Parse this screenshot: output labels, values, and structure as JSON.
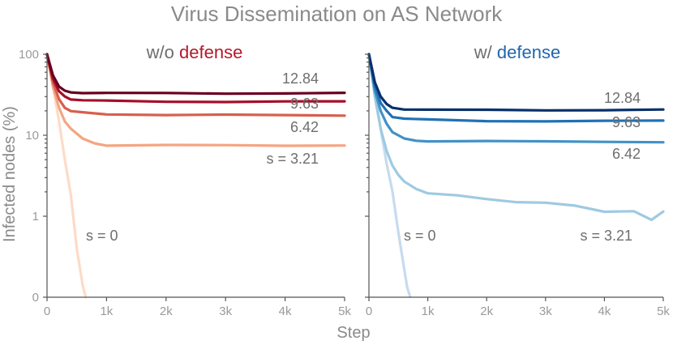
{
  "title": "Virus Dissemination on AS Network",
  "xlabel": "Step",
  "ylabel": "Infected nodes (%)",
  "chart_data": [
    {
      "type": "line",
      "subtitle_prefix": "w/o",
      "subtitle_highlight": "defense",
      "highlight_color": "#b2182b",
      "xlabel": "Step",
      "ylabel": "Infected nodes (%)",
      "xlim": [
        0,
        5000
      ],
      "ylim": [
        0,
        100
      ],
      "yscale": "symlog",
      "x_ticks": [
        0,
        1000,
        2000,
        3000,
        4000,
        5000
      ],
      "x_tick_labels": [
        "0",
        "1k",
        "2k",
        "3k",
        "4k",
        "5k"
      ],
      "y_ticks": [
        0,
        1,
        10,
        100
      ],
      "y_tick_labels": [
        "0",
        "1",
        "10",
        "100"
      ],
      "grid": false,
      "legend": "none",
      "series": [
        {
          "label": "12.84",
          "color": "#67001f",
          "x": [
            0,
            100,
            200,
            300,
            400,
            600,
            1000,
            2000,
            3000,
            4000,
            5000
          ],
          "y": [
            100,
            55,
            40,
            35,
            34,
            33.5,
            33,
            33,
            33,
            33,
            33
          ]
        },
        {
          "label": "9.63",
          "color": "#a50f28",
          "x": [
            0,
            100,
            200,
            300,
            400,
            600,
            1000,
            2000,
            3000,
            4000,
            5000
          ],
          "y": [
            100,
            50,
            35,
            30,
            28,
            27,
            26.5,
            26,
            26,
            26,
            26
          ]
        },
        {
          "label": "6.42",
          "color": "#d6604d",
          "x": [
            0,
            100,
            200,
            300,
            400,
            600,
            1000,
            2000,
            3000,
            4000,
            5000
          ],
          "y": [
            100,
            45,
            28,
            22,
            20,
            19,
            18,
            18,
            18,
            17.5,
            17.5
          ]
        },
        {
          "label": "s = 3.21",
          "color": "#f4a582",
          "x": [
            0,
            100,
            200,
            300,
            400,
            600,
            800,
            1000,
            2000,
            3000,
            4000,
            5000
          ],
          "y": [
            100,
            40,
            22,
            15,
            12,
            9,
            8,
            7.5,
            7.5,
            7.5,
            7.5,
            7.5
          ]
        },
        {
          "label": "s = 0",
          "color": "#fddbc7",
          "x": [
            0,
            100,
            200,
            300,
            400,
            500,
            600,
            650
          ],
          "y": [
            100,
            40,
            15,
            5,
            1.8,
            0.6,
            0.15,
            0
          ]
        }
      ]
    },
    {
      "type": "line",
      "subtitle_prefix": "w/",
      "subtitle_highlight": "defense",
      "highlight_color": "#2166ac",
      "xlabel": "Step",
      "ylabel": "Infected nodes (%)",
      "xlim": [
        0,
        5000
      ],
      "ylim": [
        0,
        100
      ],
      "yscale": "symlog",
      "x_ticks": [
        0,
        1000,
        2000,
        3000,
        4000,
        5000
      ],
      "x_tick_labels": [
        "0",
        "1k",
        "2k",
        "3k",
        "4k",
        "5k"
      ],
      "y_ticks": [
        0,
        1,
        10,
        100
      ],
      "y_tick_labels": [
        "0",
        "1",
        "10",
        "100"
      ],
      "grid": false,
      "legend": "none",
      "series": [
        {
          "label": "12.84",
          "color": "#08306b",
          "x": [
            0,
            100,
            200,
            300,
            400,
            600,
            1000,
            2000,
            3000,
            4000,
            5000
          ],
          "y": [
            100,
            45,
            30,
            24,
            22,
            21,
            20.5,
            20.5,
            20.5,
            20.5,
            20.5
          ]
        },
        {
          "label": "9.63",
          "color": "#2171b5",
          "x": [
            0,
            100,
            200,
            300,
            400,
            600,
            1000,
            2000,
            3000,
            4000,
            5000
          ],
          "y": [
            100,
            40,
            25,
            20,
            17,
            16,
            15.5,
            15,
            15,
            15,
            15
          ]
        },
        {
          "label": "6.42",
          "color": "#4292c6",
          "x": [
            0,
            100,
            200,
            300,
            400,
            600,
            800,
            1000,
            2000,
            3000,
            4000,
            5000
          ],
          "y": [
            100,
            35,
            20,
            14,
            11,
            9,
            8.5,
            8.5,
            8.5,
            8.3,
            8.3,
            8.3
          ]
        },
        {
          "label": "s = 3.21",
          "color": "#9ecae1",
          "x": [
            0,
            100,
            200,
            300,
            400,
            500,
            600,
            800,
            1000,
            1500,
            2000,
            2500,
            3000,
            3500,
            4000,
            4500,
            4800,
            5000
          ],
          "y": [
            100,
            30,
            12,
            6.5,
            4.2,
            3.2,
            2.7,
            2.2,
            1.9,
            1.8,
            1.65,
            1.5,
            1.45,
            1.35,
            1.15,
            1.15,
            0.95,
            1.15
          ]
        },
        {
          "label": "s = 0",
          "color": "#c6dbef",
          "x": [
            0,
            100,
            200,
            300,
            400,
            500,
            600,
            650,
            700
          ],
          "y": [
            100,
            35,
            12,
            4.5,
            2,
            0.8,
            0.35,
            0.12,
            0
          ]
        }
      ]
    }
  ]
}
